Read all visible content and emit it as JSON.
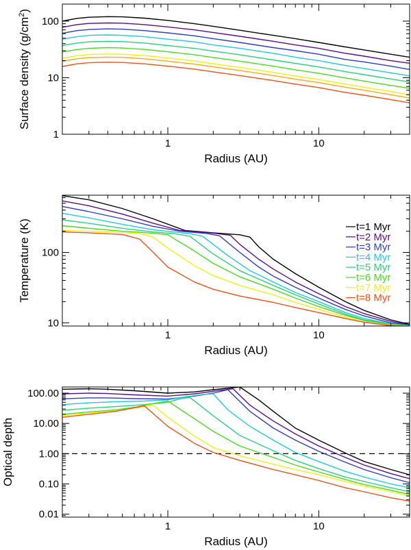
{
  "chart_data": [
    {
      "id": "surface-density",
      "type": "line",
      "xlabel": "Radius (AU)",
      "ylabel": "Surface density (g/cm",
      "ylabel_sup": "2",
      "ylabel_suffix": ")",
      "xscale": "log",
      "yscale": "log",
      "xlim": [
        0.2,
        40
      ],
      "ylim": [
        1,
        200
      ],
      "xticks": [
        {
          "value": 1,
          "label": "1"
        },
        {
          "value": 10,
          "label": "10"
        }
      ],
      "yticks": [
        {
          "value": 1,
          "label": "1"
        },
        {
          "value": 10,
          "label": "10"
        },
        {
          "value": 100,
          "label": "100"
        }
      ],
      "x": [
        0.2,
        0.25,
        0.3,
        0.4,
        0.5,
        0.7,
        1,
        1.5,
        2,
        3,
        5,
        7,
        10,
        15,
        20,
        30,
        40
      ],
      "series": [
        {
          "color": "#000000",
          "values": [
            100,
            112,
            117,
            120,
            119,
            113,
            103,
            90,
            81,
            69,
            56,
            49,
            42,
            35,
            31,
            26,
            23
          ]
        },
        {
          "color": "#5b0c8c",
          "values": [
            78,
            87,
            91,
            93,
            92,
            87,
            79,
            70,
            63,
            54,
            44,
            38,
            33,
            27,
            24,
            20,
            18
          ]
        },
        {
          "color": "#2a3cc8",
          "values": [
            61,
            68,
            71,
            73,
            72,
            68,
            62,
            55,
            49,
            42,
            34,
            30,
            26,
            21,
            19,
            16,
            14
          ]
        },
        {
          "color": "#1ec8e6",
          "values": [
            48,
            53,
            56,
            57,
            56,
            53,
            48,
            43,
            38,
            33,
            27,
            23,
            20,
            16.5,
            14.5,
            12.2,
            10.8
          ]
        },
        {
          "color": "#28d278",
          "values": [
            37,
            41,
            43,
            44,
            43.5,
            41,
            37,
            33,
            29.5,
            25.5,
            20.6,
            17.9,
            15.5,
            12.8,
            11.3,
            9.5,
            8.4
          ]
        },
        {
          "color": "#46dc1e",
          "values": [
            28.5,
            31.5,
            33,
            34,
            33.5,
            31.7,
            28.7,
            25.5,
            22.8,
            19.6,
            16,
            13.8,
            12,
            9.9,
            8.7,
            7.3,
            6.5
          ]
        },
        {
          "color": "#f0f014",
          "values": [
            22,
            24.5,
            25.7,
            26.3,
            26,
            24.6,
            22.3,
            19.8,
            17.7,
            15.2,
            12.4,
            10.7,
            9.3,
            7.7,
            6.8,
            5.7,
            5
          ]
        },
        {
          "color": "#ffaa14",
          "values": [
            19.5,
            21.6,
            22.6,
            23.1,
            22.9,
            21.6,
            19.6,
            17.4,
            15.6,
            13.4,
            10.9,
            9.4,
            8.2,
            6.8,
            6,
            5,
            4.4
          ]
        },
        {
          "color": "#f05014",
          "values": [
            15.8,
            17.6,
            18.4,
            18.8,
            18.6,
            17.6,
            16,
            14.2,
            12.7,
            10.9,
            8.9,
            7.7,
            6.7,
            5.5,
            4.9,
            4.1,
            3.6
          ]
        }
      ]
    },
    {
      "id": "temperature",
      "type": "line",
      "xlabel": "Radius (AU)",
      "ylabel": "Temperature (K)",
      "xscale": "log",
      "yscale": "log",
      "xlim": [
        0.2,
        40
      ],
      "ylim": [
        9,
        650
      ],
      "xticks": [
        {
          "value": 1,
          "label": "1"
        },
        {
          "value": 10,
          "label": "10"
        }
      ],
      "yticks": [
        {
          "value": 10,
          "label": "10"
        },
        {
          "value": 100,
          "label": "100"
        }
      ],
      "legend": [
        "t=1 Myr",
        "t=2 Myr",
        "t=3 Myr",
        "t=4 Myr",
        "t=5 Myr",
        "t=6 Myr",
        "t=7 Myr",
        "t=8 Myr"
      ],
      "legend_colors": [
        "#000000",
        "#5b0c8c",
        "#2a3cc8",
        "#1ec8e6",
        "#28d278",
        "#46dc1e",
        "#f0f014",
        "#f05014"
      ],
      "legend_position": "right",
      "series": [
        {
          "color": "#000000",
          "x": [
            0.2,
            0.3,
            0.5,
            0.8,
            1.3,
            2,
            3,
            3.5,
            4,
            5,
            7,
            10,
            15,
            20,
            30,
            40
          ],
          "values": [
            640,
            560,
            420,
            300,
            205,
            190,
            178,
            165,
            120,
            80,
            50,
            32,
            20,
            15,
            11,
            9.5
          ]
        },
        {
          "color": "#5b0c8c",
          "x": [
            0.2,
            0.3,
            0.5,
            0.8,
            1.2,
            2,
            2.6,
            3,
            4,
            5,
            7,
            10,
            15,
            20,
            30,
            40
          ],
          "values": [
            540,
            460,
            350,
            260,
            205,
            188,
            175,
            130,
            80,
            58,
            38,
            26,
            17,
            13.5,
            10.5,
            9.3
          ]
        },
        {
          "color": "#2a3cc8",
          "x": [
            0.2,
            0.3,
            0.5,
            0.8,
            1.2,
            1.8,
            2.2,
            3,
            4,
            5,
            7,
            10,
            15,
            20,
            30,
            40
          ],
          "values": [
            450,
            380,
            300,
            235,
            200,
            186,
            172,
            100,
            62,
            46,
            32,
            22.5,
            15.5,
            12.5,
            10,
            9.2
          ]
        },
        {
          "color": "#1ec8e6",
          "x": [
            0.2,
            0.3,
            0.5,
            0.8,
            1.1,
            1.4,
            1.7,
            2.5,
            3.5,
            5,
            7,
            10,
            15,
            20,
            30,
            40
          ],
          "values": [
            360,
            310,
            250,
            210,
            195,
            185,
            170,
            90,
            55,
            38,
            27,
            20,
            14,
            11.5,
            9.7,
            9.1
          ]
        },
        {
          "color": "#28d278",
          "x": [
            0.2,
            0.3,
            0.5,
            0.8,
            1.1,
            1.4,
            2,
            3,
            5,
            7,
            10,
            15,
            20,
            30,
            40
          ],
          "values": [
            290,
            260,
            220,
            195,
            185,
            170,
            95,
            55,
            34,
            25,
            18.5,
            13.3,
            11,
            9.5,
            9
          ]
        },
        {
          "color": "#46dc1e",
          "x": [
            0.2,
            0.3,
            0.5,
            0.8,
            1,
            1.5,
            2,
            3,
            5,
            7,
            10,
            15,
            20,
            30,
            40
          ],
          "values": [
            240,
            220,
            200,
            188,
            178,
            105,
            70,
            45,
            30,
            22.5,
            17,
            12.8,
            10.8,
            9.4,
            9
          ]
        },
        {
          "color": "#f0f014",
          "x": [
            0.2,
            0.3,
            0.5,
            0.65,
            0.8,
            1,
            1.5,
            2,
            3,
            5,
            7,
            10,
            15,
            20,
            30,
            40
          ],
          "values": [
            205,
            200,
            192,
            186,
            165,
            115,
            65,
            47,
            34,
            25,
            19.5,
            15.5,
            12,
            10.3,
            9.2,
            9
          ]
        },
        {
          "color": "#f05014",
          "x": [
            0.2,
            0.3,
            0.5,
            0.65,
            0.8,
            1,
            1.5,
            2,
            3,
            5,
            7,
            10,
            15,
            20,
            30,
            40
          ],
          "values": [
            195,
            190,
            180,
            155,
            100,
            62,
            38,
            30,
            24,
            19.5,
            16.5,
            14,
            11.5,
            10.2,
            9.1,
            8.9
          ]
        }
      ]
    },
    {
      "id": "optical-depth",
      "type": "line",
      "xlabel": "Radius (AU)",
      "ylabel": "Optical depth",
      "xscale": "log",
      "yscale": "log",
      "xlim": [
        0.2,
        40
      ],
      "ylim": [
        0.008,
        160
      ],
      "xticks": [
        {
          "value": 1,
          "label": "1"
        },
        {
          "value": 10,
          "label": "10"
        }
      ],
      "yticks": [
        {
          "value": 0.01,
          "label": "0.01"
        },
        {
          "value": 0.1,
          "label": "0.10"
        },
        {
          "value": 1,
          "label": "1.00"
        },
        {
          "value": 10,
          "label": "10.00"
        },
        {
          "value": 100,
          "label": "100.00"
        }
      ],
      "reference_line": {
        "y": 1,
        "style": "dashed"
      },
      "series": [
        {
          "color": "#000000",
          "x": [
            0.2,
            0.3,
            0.4,
            0.6,
            1,
            1.5,
            2,
            3,
            4,
            5,
            7,
            10,
            15,
            20,
            30,
            40
          ],
          "values": [
            135,
            140,
            135,
            120,
            100,
            110,
            130,
            160,
            60,
            25,
            7,
            2.8,
            1.05,
            0.55,
            0.3,
            0.2
          ]
        },
        {
          "color": "#5b0c8c",
          "x": [
            0.2,
            0.3,
            0.4,
            0.6,
            1,
            1.5,
            2,
            2.7,
            3.5,
            5,
            7,
            10,
            15,
            20,
            30,
            40
          ],
          "values": [
            95,
            100,
            97,
            88,
            80,
            95,
            115,
            140,
            40,
            12,
            4.5,
            1.8,
            0.75,
            0.42,
            0.22,
            0.15
          ]
        },
        {
          "color": "#2a3cc8",
          "x": [
            0.2,
            0.3,
            0.4,
            0.6,
            1,
            1.5,
            2,
            2.5,
            3.5,
            5,
            7,
            10,
            15,
            20,
            30,
            40
          ],
          "values": [
            65,
            70,
            70,
            66,
            64,
            80,
            100,
            130,
            25,
            7,
            2.8,
            1.2,
            0.52,
            0.3,
            0.16,
            0.11
          ]
        },
        {
          "color": "#1ec8e6",
          "x": [
            0.2,
            0.3,
            0.45,
            0.7,
            1,
            1.3,
            1.7,
            2,
            2.5,
            3.5,
            5,
            7,
            10,
            15,
            20,
            30,
            40
          ],
          "values": [
            42,
            48,
            52,
            55,
            60,
            75,
            90,
            95,
            28,
            8,
            2.8,
            1.1,
            0.55,
            0.26,
            0.17,
            0.1,
            0.075
          ]
        },
        {
          "color": "#28d278",
          "x": [
            0.2,
            0.3,
            0.45,
            0.7,
            1,
            1.2,
            1.4,
            2,
            3,
            5,
            7,
            10,
            15,
            20,
            30,
            40
          ],
          "values": [
            27,
            32,
            36,
            42,
            50,
            65,
            72,
            18,
            4,
            1.25,
            0.6,
            0.32,
            0.17,
            0.12,
            0.075,
            0.055
          ]
        },
        {
          "color": "#46dc1e",
          "x": [
            0.2,
            0.3,
            0.45,
            0.6,
            0.8,
            1,
            1.4,
            2,
            3,
            5,
            7,
            10,
            15,
            20,
            30,
            40
          ],
          "values": [
            20,
            24,
            28,
            34,
            45,
            55,
            18,
            5.5,
            1.8,
            0.75,
            0.42,
            0.25,
            0.14,
            0.095,
            0.062,
            0.045
          ]
        },
        {
          "color": "#f0f014",
          "x": [
            0.2,
            0.3,
            0.45,
            0.6,
            0.8,
            1,
            1.5,
            2,
            3,
            5,
            7,
            10,
            15,
            20,
            30,
            40
          ],
          "values": [
            18,
            22,
            26,
            32,
            40,
            16,
            3.8,
            1.6,
            0.85,
            0.45,
            0.3,
            0.2,
            0.12,
            0.085,
            0.055,
            0.04
          ]
        },
        {
          "color": "#f05014",
          "x": [
            0.2,
            0.3,
            0.45,
            0.6,
            0.7,
            1,
            1.5,
            2,
            3,
            5,
            7,
            10,
            15,
            20,
            30,
            40
          ],
          "values": [
            16,
            20,
            25,
            33,
            38,
            8,
            2.2,
            1.1,
            0.6,
            0.3,
            0.2,
            0.13,
            0.075,
            0.055,
            0.035,
            0.027
          ]
        }
      ]
    }
  ]
}
